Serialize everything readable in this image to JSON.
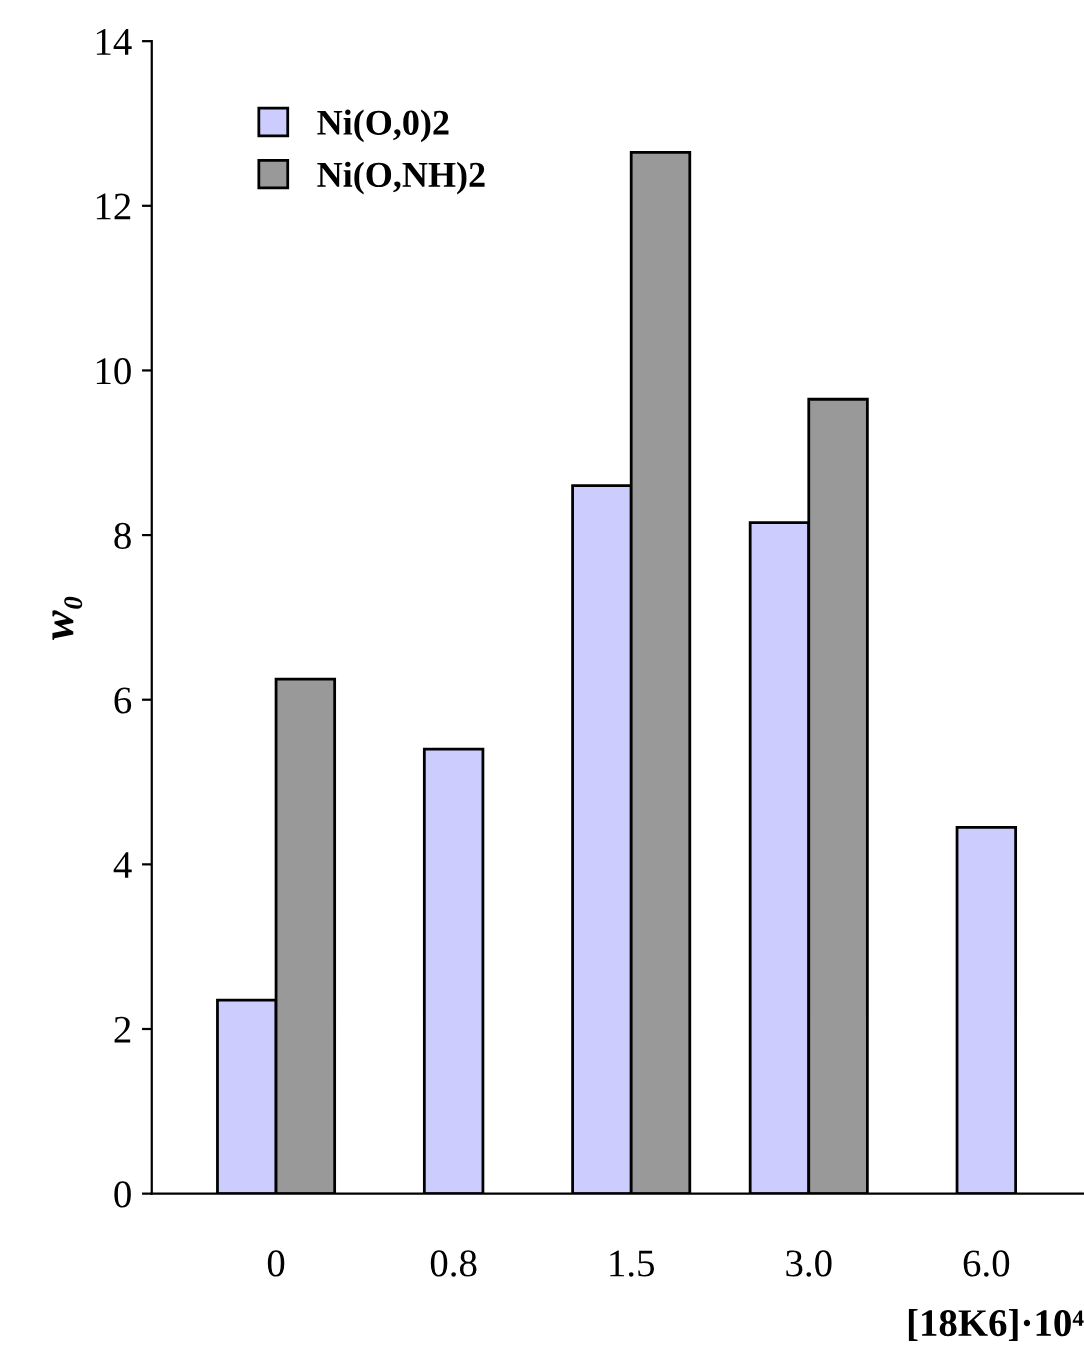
{
  "chart_data": {
    "type": "bar",
    "categories": [
      "0",
      "0.8",
      "1.5",
      "3.0",
      "6.0"
    ],
    "series": [
      {
        "name": "Ni(O,0)2",
        "color": "#ccccff",
        "values": [
          2.35,
          5.4,
          8.6,
          8.15,
          4.45
        ]
      },
      {
        "name": "Ni(O,NH)2",
        "color": "#999999",
        "values": [
          6.25,
          null,
          12.65,
          9.65,
          null
        ]
      }
    ],
    "ylabel": "w₀",
    "xlabel": "[18K6]·10⁴",
    "ylim": [
      0,
      14
    ],
    "yticks": [
      0,
      2,
      4,
      6,
      8,
      10,
      12,
      14
    ],
    "grid": false,
    "legend": "top left"
  }
}
